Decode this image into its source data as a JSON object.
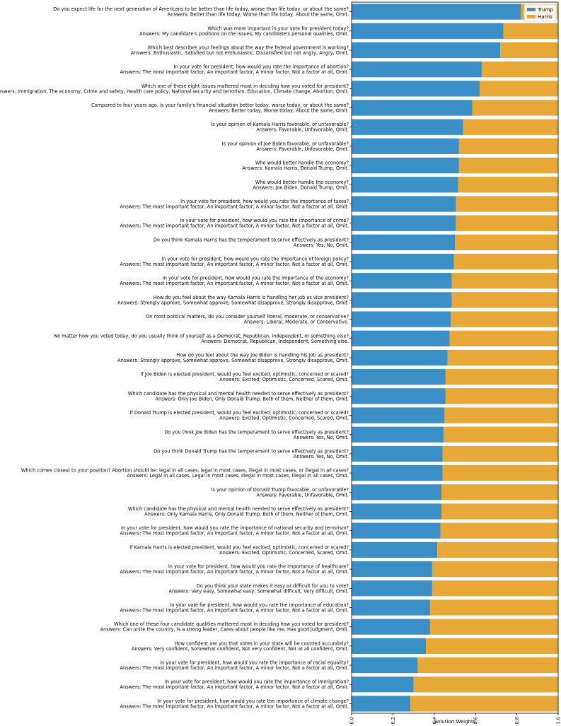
{
  "chart_data": {
    "type": "bar",
    "orientation": "horizontal",
    "stacked": true,
    "xlabel": "Solution Weights",
    "xlim": [
      0,
      1.0
    ],
    "xticks": [
      "0.0",
      "0.2",
      "0.4",
      "0.6",
      "0.8",
      "1.0"
    ],
    "legend": {
      "placement": "top-right",
      "entries": [
        "Trump",
        "Harris"
      ]
    },
    "colors": {
      "Trump": "#3a8fc7",
      "Harris": "#e8a838"
    },
    "categories": [
      {
        "q": "Do you expect life for the next generation of Americans to be better than life today, worse than life today, or about the same?",
        "a": "Answers: Better than life today, Worse than life today, About the same, Omit."
      },
      {
        "q": "Which was more important in your vote for president today?",
        "a": "Answers: My candidate's positions on the issues, My candidate's personal qualities, Omit."
      },
      {
        "q": "Which best describes your feelings about the way the federal government is working?",
        "a": "Answers: Enthusiastic, Satisfied but not enthusiastic, Dissatisfied but not angry, Angry, Omit."
      },
      {
        "q": "In your vote for president, how would you rate the importance of abortion?",
        "a": "Answers: The most important factor, An important factor, A minor factor, Not a factor at all, Omit."
      },
      {
        "q": "Which one of these eight issues mattered most in deciding how you voted for president?",
        "a": "Answers: Immigration, The economy, Crime and safety, Health care policy, National security and terrorism, Education, Climate change, Abortion, Omit."
      },
      {
        "q": "Compared to four years ago, is your family's financial situation better today, worse today, or about the same?",
        "a": "Answers: Better today, Worse today, About the same, Omit."
      },
      {
        "q": "Is your opinion of Kamala Harris favorable, or unfavorable?",
        "a": "Answers: Favorable, Unfavorable, Omit."
      },
      {
        "q": "Is your opinion of Joe Biden favorable, or unfavorable?",
        "a": "Answers: Favorable, Unfavorable, Omit."
      },
      {
        "q": "Who would better handle the economy?",
        "a": "Answers: Kamala Harris, Donald Trump, Omit."
      },
      {
        "q": "Who would better handle the economy?",
        "a": "Answers: Joe Biden, Donald Trump, Omit."
      },
      {
        "q": "In your vote for president, how would you rate the importance of taxes?",
        "a": "Answers: The most important factor, An important factor, A minor factor, Not a factor at all, Omit."
      },
      {
        "q": "In your vote for president, how would you rate the importance of crime?",
        "a": "Answers: The most important factor, An important factor, A minor factor, Not a factor at all, Omit."
      },
      {
        "q": "Do you think Kamala Harris has the temperament to serve effectively as president?",
        "a": "Answers: Yes, No, Omit."
      },
      {
        "q": "In your vote for president, how would you rate the importance of foreign policy?",
        "a": "Answers: The most important factor, An important factor, A minor factor, Not a factor at all, Omit."
      },
      {
        "q": "In your vote for president, how would you rate the importance of the economy?",
        "a": "Answers: The most important factor, An important factor, A minor factor, Not a factor at all, Omit."
      },
      {
        "q": "How do you feel about the way Kamala Harris is handling her job as vice president?",
        "a": "Answers: Strongly approve, Somewhat approve, Somewhat disapprove, Strongly disapprove, Omit."
      },
      {
        "q": "On most political matters, do you consider yourself liberal, moderate, or conservative?",
        "a": "Answers: Liberal, Moderate, or Conservative."
      },
      {
        "q": "No matter how you voted today, do you usually think of yourself as a Democrat, Republican, Independent, or something else?",
        "a": "Answers: Democrat, Republican, Independent, Something else."
      },
      {
        "q": "How do you feel about the way Joe Biden is handling his job as president?",
        "a": "Answers: Strongly approve, Somewhat approve, Somewhat disapprove, Strongly disapprove, Omit."
      },
      {
        "q": "If Joe Biden is elected president, would you feel excited, optimistic, concerned or scared?",
        "a": "Answers: Excited, Optimistic, Concerned, Scared, Omit."
      },
      {
        "q": "Which candidate has the physical and mental health needed to serve effectively as president?",
        "a": "Answers: Only Joe Biden, Only Donald Trump, Both of them, Neither of them, Omit."
      },
      {
        "q": "If Donald Trump is elected president, would you feel excited, optimistic, concerned or scared?",
        "a": "Answers: Excited, Optimistic, Concerned, Scared, Omit."
      },
      {
        "q": "Do you think Joe Biden has the temperament to serve effectively as president?",
        "a": "Answers: Yes, No, Omit."
      },
      {
        "q": "Do you think Donald Trump has the temperament to serve effectively as president?",
        "a": "Answers: Yes, No, Omit."
      },
      {
        "q": "Which comes closest to your position? Abortion should be: legal in all cases, legal in most cases, illegal in most cases, or illegal in all cases?",
        "a": "Answers: Legal in all cases, Legal in most cases, Illegal in most cases, Illegal in all cases, Omit."
      },
      {
        "q": "Is your opinion of Donald Trump favorable, or unfavorable?",
        "a": "Answers: Favorable, Unfavorable, Omit."
      },
      {
        "q": "Which candidate has the physical and mental health needed to serve effectively as president?",
        "a": "Answers: Only Kamala Harris, Only Donald Trump, Both of them, Neither of them, Omit."
      },
      {
        "q": "In your vote for president, how would you rate the importance of national security and terrorism?",
        "a": "Answers: The most important factor, An important factor, A minor factor, Not a factor at all, Omit."
      },
      {
        "q": "If Kamala Harris is elected president, would you feel excited, optimistic, concerned or scared?",
        "a": "Answers: Excited, Optimistic, Concerned, Scared, Omit."
      },
      {
        "q": "In your vote for president, how would you rate the importance of healthcare?",
        "a": "Answers: The most important factor, An important factor, A minor factor, Not a factor at all, Omit."
      },
      {
        "q": "Do you think your state makes it easy or difficult for you to vote?",
        "a": "Answers: Very easy, Somewhat easy, Somewhat difficult, Very difficult, Omit."
      },
      {
        "q": "In your vote for president, how would you rate the importance of education?",
        "a": "Answers: The most important factor, An important factor, A minor factor, Not a factor at all, Omit."
      },
      {
        "q": "Which one of these four candidate qualities mattered most in deciding how you voted for president?",
        "a": "Answers: Can unite the country, Is a strong leader, Cares about people like me, Has good judgment, Omit."
      },
      {
        "q": "How confident are you that votes in your state will be counted accurately?",
        "a": "Answers: Very confident, Somewhat confident, Not very confident, Not at all confident, Omit."
      },
      {
        "q": "In your vote for president, how would you rate the importance of racial equality?",
        "a": "Answers: The most important factor, An important factor, A minor factor, Not a factor at all, Omit."
      },
      {
        "q": "In your vote for president, how would you rate the importance of immigration?",
        "a": "Answers: The most important factor, An important factor, A minor factor, Not a factor at all, Omit."
      },
      {
        "q": "In your vote for president, how would you rate the importance of climate change?",
        "a": "Answers: The most important factor, An important factor, A minor factor, Not a factor at all, Omit."
      }
    ],
    "series": [
      {
        "name": "Trump",
        "values": [
          0.82,
          0.735,
          0.72,
          0.63,
          0.62,
          0.585,
          0.54,
          0.52,
          0.52,
          0.515,
          0.505,
          0.505,
          0.5,
          0.495,
          0.485,
          0.485,
          0.48,
          0.475,
          0.465,
          0.455,
          0.455,
          0.45,
          0.445,
          0.44,
          0.44,
          0.435,
          0.435,
          0.43,
          0.415,
          0.39,
          0.39,
          0.38,
          0.38,
          0.36,
          0.32,
          0.3,
          0.285
        ]
      },
      {
        "name": "Harris",
        "values": [
          0.18,
          0.265,
          0.28,
          0.37,
          0.38,
          0.415,
          0.46,
          0.48,
          0.48,
          0.485,
          0.495,
          0.495,
          0.5,
          0.505,
          0.515,
          0.515,
          0.52,
          0.525,
          0.535,
          0.545,
          0.545,
          0.55,
          0.555,
          0.56,
          0.56,
          0.565,
          0.565,
          0.57,
          0.585,
          0.61,
          0.61,
          0.62,
          0.62,
          0.64,
          0.68,
          0.7,
          0.715
        ]
      }
    ]
  }
}
